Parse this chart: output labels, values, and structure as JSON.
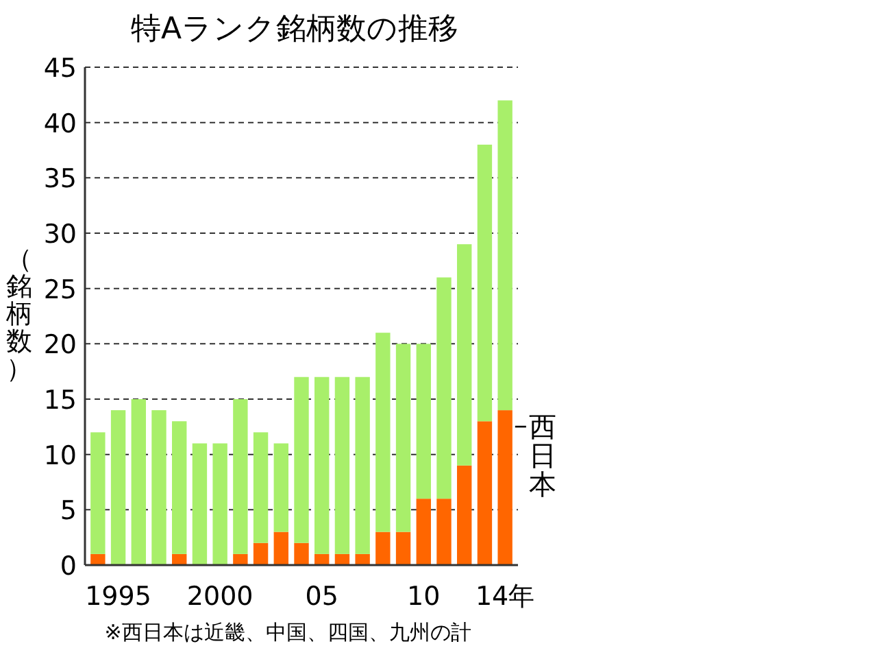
{
  "chart_data": {
    "type": "bar",
    "title": "特Aランク銘柄数の推移",
    "ylabel": "（銘柄数）",
    "annotations": [
      "※西日本は近畿、中国、四国、九州の計"
    ],
    "categories": [
      null,
      "1995",
      null,
      null,
      null,
      null,
      "2000",
      null,
      null,
      null,
      null,
      "05",
      null,
      null,
      null,
      null,
      "10",
      null,
      null,
      null,
      "14年"
    ],
    "stacked": true,
    "series": [
      {
        "name": "西日本",
        "color": "#ff6600",
        "values": [
          1,
          0,
          0,
          0,
          1,
          0,
          0,
          1,
          2,
          3,
          2,
          1,
          1,
          1,
          3,
          3,
          6,
          6,
          9,
          13,
          14
        ]
      },
      {
        "color": "#a8ef6a",
        "values": [
          11,
          14,
          15,
          14,
          12,
          11,
          11,
          14,
          10,
          8,
          15,
          16,
          16,
          16,
          18,
          17,
          14,
          20,
          20,
          25,
          28
        ]
      }
    ],
    "ylim": [
      0,
      45
    ],
    "yticks": [
      0,
      5,
      10,
      15,
      20,
      25,
      30,
      35,
      40,
      45
    ],
    "grid": "y"
  }
}
